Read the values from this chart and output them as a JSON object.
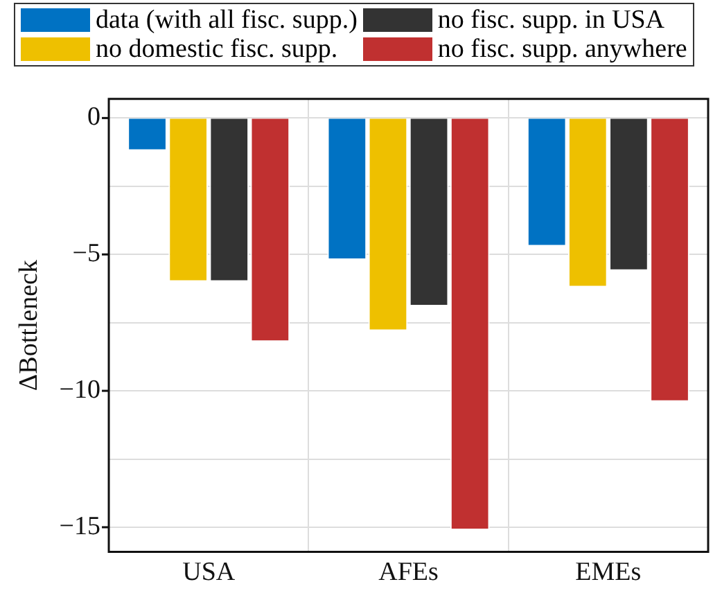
{
  "chart_data": {
    "type": "bar",
    "ylabel": "ΔBottleneck",
    "categories": [
      "USA",
      "AFEs",
      "EMEs"
    ],
    "series": [
      {
        "name": "data (with all fisc. supp.)",
        "color": "#0072c3",
        "values": [
          -1.2,
          -5.2,
          -4.7
        ]
      },
      {
        "name": "no domestic fisc. supp.",
        "color": "#eec000",
        "values": [
          -6.0,
          -7.8,
          -6.2
        ]
      },
      {
        "name": "no fisc. supp. in USA",
        "color": "#333333",
        "values": [
          -6.0,
          -6.9,
          -5.6
        ]
      },
      {
        "name": "no fisc. supp. anywhere",
        "color": "#c03030",
        "values": [
          -8.2,
          -15.1,
          -10.4
        ]
      }
    ],
    "ylim": [
      -15.9,
      0.7
    ],
    "yticks": [
      {
        "value": -15,
        "label": "−15"
      },
      {
        "value": -12.5,
        "label": null
      },
      {
        "value": -10,
        "label": "−10"
      },
      {
        "value": -7.5,
        "label": null
      },
      {
        "value": -5,
        "label": "−5"
      },
      {
        "value": -2.5,
        "label": null
      },
      0
    ],
    "grid": true,
    "legend": "top"
  }
}
